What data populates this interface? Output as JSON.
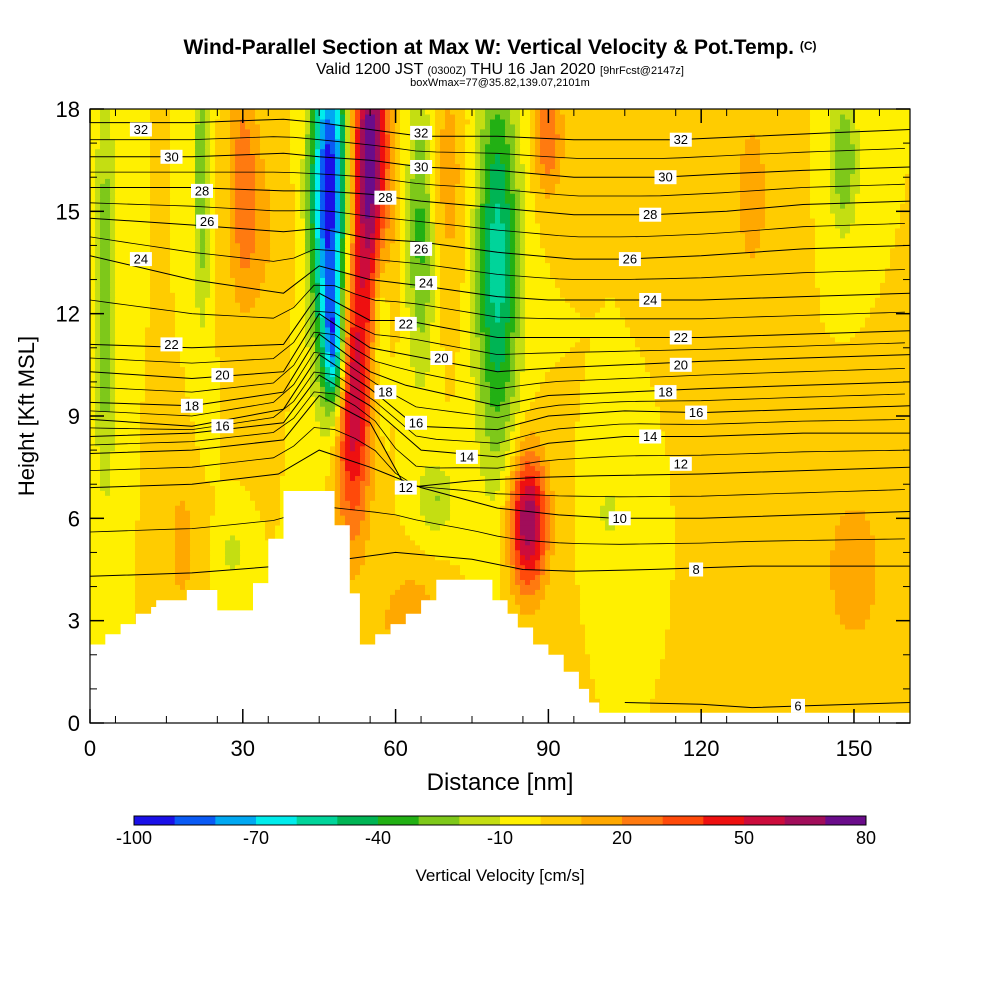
{
  "header": {
    "title": "Wind-Parallel Section at Max W: Vertical Velocity & Pot.Temp.",
    "title_mark": "(C)",
    "valid_prefix": "Valid 1200 JST",
    "valid_utc": "(0300Z)",
    "valid_date": "THU 16 Jan 2020",
    "forecast": "[9hrFcst@2147z]",
    "box_info": "boxWmax=77@35.82,139.07,2101m"
  },
  "chart_data": {
    "type": "heatmap",
    "xlabel": "Distance [nm]",
    "ylabel": "Height [Kft MSL]",
    "xlim": [
      0,
      161
    ],
    "ylim": [
      0,
      18
    ],
    "x_ticks": [
      0,
      30,
      60,
      90,
      120,
      150
    ],
    "y_ticks": [
      0,
      3,
      6,
      9,
      12,
      15,
      18
    ],
    "x_tick_labels": [
      "0",
      "30",
      "60",
      "90",
      "120",
      "150"
    ],
    "y_tick_labels": [
      "0",
      "3",
      "6",
      "9",
      "12",
      "15",
      "18"
    ],
    "colorbar": {
      "label": "Vertical Velocity [cm/s]",
      "min": -100,
      "max": 80,
      "step": 10,
      "tick_values": [
        -100,
        -70,
        -40,
        -10,
        20,
        50,
        80
      ],
      "tick_labels": [
        "-100",
        "-70",
        "-40",
        "-10",
        "20",
        "50",
        "80"
      ],
      "colors": [
        "#1a10e8",
        "#0a5af5",
        "#00a8f2",
        "#00ecec",
        "#00d49a",
        "#00b454",
        "#22b014",
        "#7ec81a",
        "#c4de12",
        "#fff000",
        "#ffcc00",
        "#ffa800",
        "#ff7a10",
        "#ff4a0a",
        "#ee1010",
        "#cc0c3c",
        "#a10d5a",
        "#6a0c8a"
      ]
    },
    "terrain": [
      [
        0,
        2.3
      ],
      [
        3,
        2.3
      ],
      [
        3,
        2.6
      ],
      [
        6,
        2.6
      ],
      [
        6,
        2.9
      ],
      [
        9,
        2.9
      ],
      [
        9,
        3.2
      ],
      [
        12,
        3.2
      ],
      [
        12,
        3.4
      ],
      [
        13,
        3.4
      ],
      [
        13,
        3.6
      ],
      [
        19,
        3.6
      ],
      [
        19,
        3.9
      ],
      [
        25,
        3.9
      ],
      [
        25,
        3.3
      ],
      [
        32,
        3.3
      ],
      [
        32,
        4.1
      ],
      [
        35,
        4.1
      ],
      [
        35,
        5.4
      ],
      [
        38,
        5.4
      ],
      [
        38,
        6.8
      ],
      [
        48,
        6.8
      ],
      [
        48,
        5.8
      ],
      [
        51,
        5.8
      ],
      [
        51,
        3.8
      ],
      [
        53,
        3.8
      ],
      [
        53,
        2.3
      ],
      [
        56,
        2.3
      ],
      [
        56,
        2.6
      ],
      [
        59,
        2.6
      ],
      [
        59,
        2.9
      ],
      [
        62,
        2.9
      ],
      [
        62,
        3.2
      ],
      [
        65,
        3.2
      ],
      [
        65,
        3.6
      ],
      [
        68,
        3.6
      ],
      [
        68,
        4.2
      ],
      [
        79,
        4.2
      ],
      [
        79,
        3.6
      ],
      [
        82,
        3.6
      ],
      [
        82,
        3.2
      ],
      [
        84,
        3.2
      ],
      [
        84,
        2.8
      ],
      [
        87,
        2.8
      ],
      [
        87,
        2.3
      ],
      [
        90,
        2.3
      ],
      [
        90,
        2.0
      ],
      [
        93,
        2.0
      ],
      [
        93,
        1.5
      ],
      [
        96,
        1.5
      ],
      [
        96,
        1.0
      ],
      [
        98,
        1.0
      ],
      [
        98,
        0.6
      ],
      [
        100,
        0.6
      ],
      [
        100,
        0.3
      ],
      [
        161,
        0.3
      ]
    ],
    "updrafts": [
      {
        "x": 55,
        "z": 16.5,
        "sx": 2.5,
        "sz": 3.0,
        "w": 80
      },
      {
        "x": 51.5,
        "z": 9.5,
        "sx": 2.5,
        "sz": 2.8,
        "w": 60
      },
      {
        "x": 86,
        "z": 5.9,
        "sx": 2.6,
        "sz": 1.4,
        "w": 70
      },
      {
        "x": 90,
        "z": 17.2,
        "sx": 2.0,
        "sz": 1.2,
        "w": 30
      },
      {
        "x": 30,
        "z": 16.0,
        "sx": 2.0,
        "sz": 2.5,
        "w": 22
      },
      {
        "x": 70,
        "z": 16.0,
        "sx": 3.0,
        "sz": 2.5,
        "w": 15
      },
      {
        "x": 33,
        "z": 14.5,
        "sx": 3.5,
        "sz": 2.0,
        "w": 12
      },
      {
        "x": 63,
        "z": 3.0,
        "sx": 4.0,
        "sz": 1.0,
        "w": 20
      },
      {
        "x": 18,
        "z": 5.2,
        "sx": 2.0,
        "sz": 1.5,
        "w": 15
      },
      {
        "x": 130,
        "z": 15.5,
        "sx": 4.0,
        "sz": 3.0,
        "w": 12
      },
      {
        "x": 150,
        "z": 4.5,
        "sx": 5.0,
        "sz": 2.0,
        "w": 15
      }
    ],
    "downdrafts": [
      {
        "x": 47,
        "z": 15.5,
        "sx": 2.5,
        "sz": 3.5,
        "w": -100
      },
      {
        "x": 48,
        "z": 11.0,
        "sx": 1.4,
        "sz": 1.3,
        "w": -60
      },
      {
        "x": 80,
        "z": 13.5,
        "sx": 3.0,
        "sz": 4.0,
        "w": -55
      },
      {
        "x": 65,
        "z": 14.5,
        "sx": 2.0,
        "sz": 3.0,
        "w": -35
      },
      {
        "x": 68,
        "z": 6.6,
        "sx": 2.5,
        "sz": 0.8,
        "w": -20
      },
      {
        "x": 102,
        "z": 6.2,
        "sx": 2.5,
        "sz": 0.9,
        "w": -12
      },
      {
        "x": 3,
        "z": 12.5,
        "sx": 1.5,
        "sz": 4.0,
        "w": -30
      },
      {
        "x": 22,
        "z": 16.0,
        "sx": 1.2,
        "sz": 3.0,
        "w": -30
      },
      {
        "x": 148,
        "z": 16.5,
        "sx": 2.0,
        "sz": 1.5,
        "w": -30
      },
      {
        "x": 28,
        "z": 5.0,
        "sx": 1.5,
        "sz": 0.6,
        "w": -15
      },
      {
        "x": 57,
        "z": 12.0,
        "sx": 1.2,
        "sz": 2.0,
        "w": -25
      }
    ],
    "theta_contours": [
      {
        "label": "6",
        "points": [
          [
            105,
            0.6
          ],
          [
            120,
            0.55
          ],
          [
            130,
            0.45
          ],
          [
            140,
            0.5
          ],
          [
            150,
            0.55
          ],
          [
            161,
            0.6
          ]
        ]
      },
      {
        "label": "8",
        "points": [
          [
            0,
            4.3
          ],
          [
            20,
            4.4
          ],
          [
            37,
            4.6
          ],
          [
            50,
            4.8
          ],
          [
            60,
            5.0
          ],
          [
            75,
            4.8
          ],
          [
            85,
            4.5
          ],
          [
            95,
            4.45
          ],
          [
            110,
            4.5
          ],
          [
            130,
            4.6
          ],
          [
            150,
            4.6
          ],
          [
            161,
            4.6
          ]
        ]
      },
      {
        "label": "10",
        "points": [
          [
            0,
            6.9
          ],
          [
            20,
            7.0
          ],
          [
            37,
            7.3
          ],
          [
            45,
            8.0
          ],
          [
            55,
            7.5
          ],
          [
            65,
            6.9
          ],
          [
            80,
            6.3
          ],
          [
            92,
            6.1
          ],
          [
            103,
            6.0
          ],
          [
            120,
            6.0
          ],
          [
            140,
            6.1
          ],
          [
            161,
            6.2
          ]
        ]
      },
      {
        "label": "12",
        "points": [
          [
            0,
            7.9
          ],
          [
            20,
            8.0
          ],
          [
            38,
            8.3
          ],
          [
            45,
            9.6
          ],
          [
            55,
            8.8
          ],
          [
            62,
            6.9
          ],
          [
            75,
            7.1
          ],
          [
            88,
            7.2
          ],
          [
            100,
            7.25
          ],
          [
            120,
            7.3
          ],
          [
            140,
            7.4
          ],
          [
            161,
            7.5
          ]
        ]
      },
      {
        "label": "14",
        "points": [
          [
            0,
            8.4
          ],
          [
            20,
            8.5
          ],
          [
            38,
            8.8
          ],
          [
            45,
            10.2
          ],
          [
            55,
            9.3
          ],
          [
            65,
            8.0
          ],
          [
            80,
            7.8
          ],
          [
            90,
            8.2
          ],
          [
            105,
            8.4
          ],
          [
            120,
            8.4
          ],
          [
            140,
            8.5
          ],
          [
            161,
            8.5
          ]
        ]
      },
      {
        "label": "16",
        "points": [
          [
            0,
            8.9
          ],
          [
            20,
            8.7
          ],
          [
            38,
            9.2
          ],
          [
            45,
            10.8
          ],
          [
            55,
            9.8
          ],
          [
            64,
            8.7
          ],
          [
            80,
            8.6
          ],
          [
            90,
            9.0
          ],
          [
            105,
            9.15
          ],
          [
            120,
            9.1
          ],
          [
            140,
            9.2
          ],
          [
            161,
            9.3
          ]
        ]
      },
      {
        "label": "18",
        "points": [
          [
            0,
            9.4
          ],
          [
            20,
            9.3
          ],
          [
            38,
            9.7
          ],
          [
            45,
            11.4
          ],
          [
            55,
            10.3
          ],
          [
            62,
            9.9
          ],
          [
            80,
            9.3
          ],
          [
            90,
            9.6
          ],
          [
            105,
            9.7
          ],
          [
            120,
            9.8
          ],
          [
            140,
            9.9
          ],
          [
            161,
            10.0
          ]
        ]
      },
      {
        "label": "20",
        "points": [
          [
            0,
            10.3
          ],
          [
            20,
            10.1
          ],
          [
            38,
            10.3
          ],
          [
            45,
            12.0
          ],
          [
            55,
            11.0
          ],
          [
            69,
            10.6
          ],
          [
            80,
            10.3
          ],
          [
            90,
            10.4
          ],
          [
            105,
            10.5
          ],
          [
            120,
            10.6
          ],
          [
            140,
            10.7
          ],
          [
            161,
            10.8
          ]
        ]
      },
      {
        "label": "22",
        "points": [
          [
            0,
            11.1
          ],
          [
            20,
            11.0
          ],
          [
            38,
            11.1
          ],
          [
            45,
            12.6
          ],
          [
            55,
            11.8
          ],
          [
            62,
            11.8
          ],
          [
            80,
            11.3
          ],
          [
            90,
            11.3
          ],
          [
            105,
            11.3
          ],
          [
            120,
            11.3
          ],
          [
            140,
            11.4
          ],
          [
            161,
            11.5
          ]
        ]
      },
      {
        "label": "24",
        "points": [
          [
            0,
            13.7
          ],
          [
            20,
            13.0
          ],
          [
            38,
            12.6
          ],
          [
            45,
            13.4
          ],
          [
            55,
            13.0
          ],
          [
            66,
            12.8
          ],
          [
            80,
            12.5
          ],
          [
            90,
            12.4
          ],
          [
            105,
            12.4
          ],
          [
            120,
            12.4
          ],
          [
            140,
            12.5
          ],
          [
            161,
            12.6
          ]
        ]
      },
      {
        "label": "26",
        "points": [
          [
            0,
            14.8
          ],
          [
            20,
            14.6
          ],
          [
            38,
            14.4
          ],
          [
            45,
            14.5
          ],
          [
            55,
            14.2
          ],
          [
            65,
            14.1
          ],
          [
            80,
            13.8
          ],
          [
            95,
            13.6
          ],
          [
            105,
            13.6
          ],
          [
            120,
            13.7
          ],
          [
            140,
            13.9
          ],
          [
            161,
            14.0
          ]
        ]
      },
      {
        "label": "28",
        "points": [
          [
            0,
            15.7
          ],
          [
            20,
            15.7
          ],
          [
            38,
            15.6
          ],
          [
            45,
            15.6
          ],
          [
            55,
            15.5
          ],
          [
            65,
            15.3
          ],
          [
            80,
            15.1
          ],
          [
            95,
            14.9
          ],
          [
            110,
            14.9
          ],
          [
            125,
            15.0
          ],
          [
            140,
            15.2
          ],
          [
            161,
            15.3
          ]
        ]
      },
      {
        "label": "30",
        "points": [
          [
            0,
            16.6
          ],
          [
            20,
            16.6
          ],
          [
            38,
            16.7
          ],
          [
            45,
            16.6
          ],
          [
            55,
            16.5
          ],
          [
            65,
            16.3
          ],
          [
            80,
            16.2
          ],
          [
            95,
            16.0
          ],
          [
            112,
            16.0
          ],
          [
            125,
            16.1
          ],
          [
            140,
            16.2
          ],
          [
            161,
            16.3
          ]
        ]
      },
      {
        "label": "32",
        "points": [
          [
            0,
            17.6
          ],
          [
            20,
            17.6
          ],
          [
            38,
            17.7
          ],
          [
            45,
            17.6
          ],
          [
            55,
            17.4
          ],
          [
            65,
            17.2
          ],
          [
            80,
            17.2
          ],
          [
            95,
            17.1
          ],
          [
            115,
            17.1
          ],
          [
            130,
            17.2
          ],
          [
            145,
            17.3
          ],
          [
            161,
            17.4
          ]
        ]
      }
    ],
    "contour_labels": [
      {
        "text": "32",
        "x": 10,
        "z": 17.4
      },
      {
        "text": "30",
        "x": 16,
        "z": 16.6
      },
      {
        "text": "28",
        "x": 22,
        "z": 15.6
      },
      {
        "text": "26",
        "x": 23,
        "z": 14.7
      },
      {
        "text": "24",
        "x": 10,
        "z": 13.6
      },
      {
        "text": "22",
        "x": 16,
        "z": 11.1
      },
      {
        "text": "20",
        "x": 26,
        "z": 10.2
      },
      {
        "text": "18",
        "x": 20,
        "z": 9.3
      },
      {
        "text": "16",
        "x": 26,
        "z": 8.7
      },
      {
        "text": "32",
        "x": 65,
        "z": 17.3
      },
      {
        "text": "30",
        "x": 65,
        "z": 16.3
      },
      {
        "text": "28",
        "x": 58,
        "z": 15.4
      },
      {
        "text": "26",
        "x": 65,
        "z": 13.9
      },
      {
        "text": "24",
        "x": 66,
        "z": 12.9
      },
      {
        "text": "22",
        "x": 62,
        "z": 11.7
      },
      {
        "text": "20",
        "x": 69,
        "z": 10.7
      },
      {
        "text": "18",
        "x": 58,
        "z": 9.7
      },
      {
        "text": "16",
        "x": 64,
        "z": 8.8
      },
      {
        "text": "14",
        "x": 74,
        "z": 7.8
      },
      {
        "text": "12",
        "x": 62,
        "z": 6.9
      },
      {
        "text": "32",
        "x": 116,
        "z": 17.1
      },
      {
        "text": "30",
        "x": 113,
        "z": 16.0
      },
      {
        "text": "28",
        "x": 110,
        "z": 14.9
      },
      {
        "text": "26",
        "x": 106,
        "z": 13.6
      },
      {
        "text": "24",
        "x": 110,
        "z": 12.4
      },
      {
        "text": "22",
        "x": 116,
        "z": 11.3
      },
      {
        "text": "20",
        "x": 116,
        "z": 10.5
      },
      {
        "text": "18",
        "x": 113,
        "z": 9.7
      },
      {
        "text": "16",
        "x": 119,
        "z": 9.1
      },
      {
        "text": "14",
        "x": 110,
        "z": 8.4
      },
      {
        "text": "12",
        "x": 116,
        "z": 7.6
      },
      {
        "text": "10",
        "x": 104,
        "z": 6.0
      },
      {
        "text": "8",
        "x": 119,
        "z": 4.5
      },
      {
        "text": "6",
        "x": 139,
        "z": 0.5
      }
    ]
  }
}
